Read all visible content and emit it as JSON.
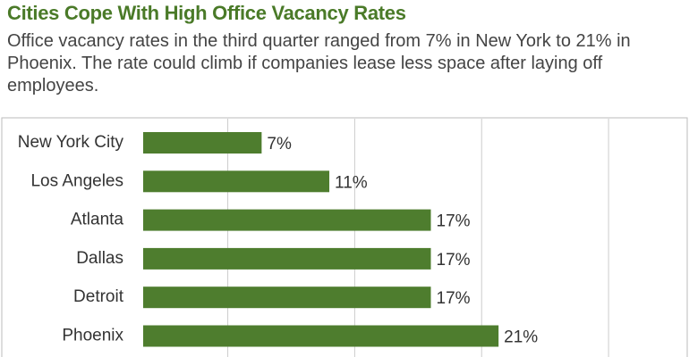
{
  "chart_data": {
    "type": "bar",
    "orientation": "horizontal",
    "title": "Cities Cope With High Office Vacancy Rates",
    "subtitle": "Office vacancy rates in the third quarter ranged from 7% in New York to 21% in Phoenix. The rate could climb if companies lease less space after laying off employees.",
    "categories": [
      "New York City",
      "Los Angeles",
      "Atlanta",
      "Dallas",
      "Detroit",
      "Phoenix"
    ],
    "values": [
      7,
      11,
      17,
      17,
      17,
      21
    ],
    "value_labels": [
      "7%",
      "11%",
      "17%",
      "17%",
      "17%",
      "21%"
    ],
    "color": "#4e7d2e",
    "xlim": [
      0,
      28.5
    ],
    "xticks": [
      5,
      12.5,
      20,
      27.5
    ],
    "grid": true
  }
}
